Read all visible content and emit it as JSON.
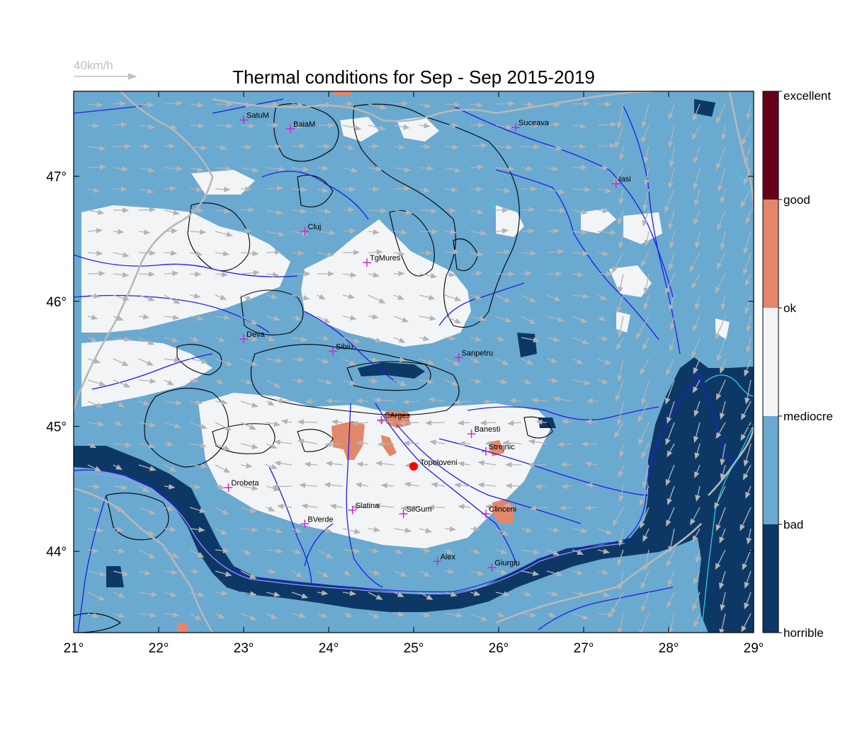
{
  "title": "Thermal conditions for Sep - Sep  2015-2019",
  "wind_reference": {
    "label": "40km/h",
    "color": "#c0c0c0"
  },
  "colors": {
    "bad": "#6aa9d0",
    "horrible": "#0d3866",
    "mediocre": "#f3f4f6",
    "ok_good": "#e3876b",
    "excellent": "#650019",
    "river": "#1f1fe6",
    "border": "#b8b8b8",
    "contour": "#000000",
    "city_marker": "#d020d0",
    "selected_marker": "#ff0000",
    "arrow": "#b4b4b4"
  },
  "map": {
    "x_ticks": [
      "21°",
      "22°",
      "23°",
      "24°",
      "25°",
      "26°",
      "27°",
      "28°",
      "29°"
    ],
    "y_ticks": [
      "47°",
      "46°",
      "45°",
      "44°"
    ],
    "lon_range": [
      21,
      29
    ],
    "lat_range": [
      43.35,
      47.68
    ]
  },
  "colorbar": {
    "labels": [
      "excellent",
      "good",
      "ok",
      "mediocre",
      "bad",
      "horrible"
    ],
    "segments": [
      {
        "name": "excellent",
        "color": "#650019"
      },
      {
        "name": "good",
        "color": "#e3876b"
      },
      {
        "name": "ok",
        "color": "#f3f4f6"
      },
      {
        "name": "mediocre",
        "color": "#6aa9d0"
      },
      {
        "name": "bad",
        "color": "#0d3866"
      }
    ]
  },
  "cities": [
    {
      "name": "SatuM",
      "lon": 23.0,
      "lat": 47.45
    },
    {
      "name": "BaiaM",
      "lon": 23.55,
      "lat": 47.38
    },
    {
      "name": "Suceava",
      "lon": 26.2,
      "lat": 47.39
    },
    {
      "name": "Iasi",
      "lon": 27.38,
      "lat": 46.94
    },
    {
      "name": "Cluj",
      "lon": 23.72,
      "lat": 46.56
    },
    {
      "name": "TgMures",
      "lon": 24.45,
      "lat": 46.31
    },
    {
      "name": "Deva",
      "lon": 23.0,
      "lat": 45.7
    },
    {
      "name": "Sibiu",
      "lon": 24.05,
      "lat": 45.6
    },
    {
      "name": "Sanpetru",
      "lon": 25.53,
      "lat": 45.55
    },
    {
      "name": "CArges",
      "lon": 24.62,
      "lat": 45.05
    },
    {
      "name": "Banesti",
      "lon": 25.68,
      "lat": 44.94
    },
    {
      "name": "Strejnic",
      "lon": 25.85,
      "lat": 44.8
    },
    {
      "name": "Drobeta",
      "lon": 22.82,
      "lat": 44.51
    },
    {
      "name": "Slatina",
      "lon": 24.28,
      "lat": 44.33
    },
    {
      "name": "SilGum",
      "lon": 24.88,
      "lat": 44.3
    },
    {
      "name": "Clinceni",
      "lon": 25.85,
      "lat": 44.3
    },
    {
      "name": "BVerde",
      "lon": 23.72,
      "lat": 44.22
    },
    {
      "name": "Alex",
      "lon": 25.28,
      "lat": 43.92
    },
    {
      "name": "Giurgiu",
      "lon": 25.92,
      "lat": 43.87
    }
  ],
  "selected_site": {
    "name": "Topoloveni",
    "lon": 25.0,
    "lat": 44.68
  }
}
